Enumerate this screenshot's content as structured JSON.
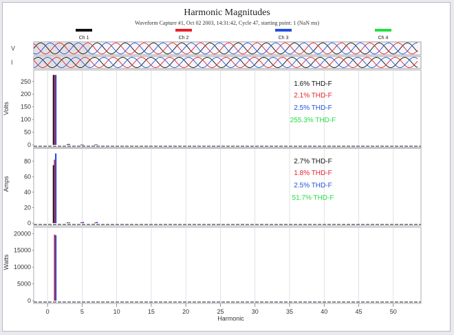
{
  "chart_data": {
    "type": "bar",
    "title": "Harmonic Magnitudes",
    "subtitle": "Waveform Capture #1, Oct 02 2003, 14:31:42, Cycle 47,  starting point: 1  (NaN ms)",
    "xlabel": "Harmonic",
    "xlim": [
      -2,
      54
    ],
    "x_ticks": [
      "0",
      "5",
      "10",
      "15",
      "20",
      "25",
      "30",
      "35",
      "40",
      "45",
      "50"
    ],
    "channels": [
      {
        "name": "Ch 1",
        "color": "#111111"
      },
      {
        "name": "Ch 2",
        "color": "#e8202a"
      },
      {
        "name": "Ch 3",
        "color": "#2150e0"
      },
      {
        "name": "Ch 4",
        "color": "#22e040"
      }
    ],
    "waveform_labels": [
      "V",
      "I"
    ],
    "panels": [
      {
        "ylabel": "Volts",
        "ylim": [
          0,
          290
        ],
        "y_ticks": [
          "250",
          "200",
          "150",
          "100",
          "50",
          "0"
        ],
        "y_tick_values": [
          250,
          200,
          150,
          100,
          50,
          0
        ],
        "thd": [
          "1.6% THD-F",
          "2.1% THD-F",
          "2.5% THD-F",
          "255.3% THD-F"
        ],
        "bars": {
          "harmonics": [
            1,
            3,
            5,
            7
          ],
          "Ch 1": [
            276,
            2,
            0.8,
            1
          ],
          "Ch 2": [
            276,
            4,
            1,
            1.5
          ],
          "Ch 3": [
            276,
            3,
            1,
            2
          ]
        }
      },
      {
        "ylabel": "Amps",
        "ylim": [
          0,
          95
        ],
        "y_ticks": [
          "80",
          "60",
          "40",
          "20",
          "0"
        ],
        "y_tick_values": [
          80,
          60,
          40,
          20,
          0
        ],
        "thd": [
          "2.7% THD-F",
          "1.8% THD-F",
          "2.5% THD-F",
          "51.7% THD-F"
        ],
        "bars": {
          "harmonics": [
            1,
            3,
            5,
            7
          ],
          "Ch 1": [
            75,
            0.8,
            0.8,
            0.5
          ],
          "Ch 2": [
            82,
            0.5,
            1,
            1
          ],
          "Ch 3": [
            90,
            1,
            1.5,
            1.5
          ]
        }
      },
      {
        "ylabel": "Watts",
        "ylim": [
          0,
          21500
        ],
        "y_ticks": [
          "20000",
          "15000",
          "10000",
          "5000",
          "0"
        ],
        "y_tick_values": [
          20000,
          15000,
          10000,
          5000,
          0
        ],
        "thd": [],
        "bars": {
          "harmonics": [
            1
          ],
          "Ch 1": [
            0
          ],
          "Ch 2": [
            19700
          ],
          "Ch 3": [
            19500
          ]
        }
      }
    ]
  }
}
